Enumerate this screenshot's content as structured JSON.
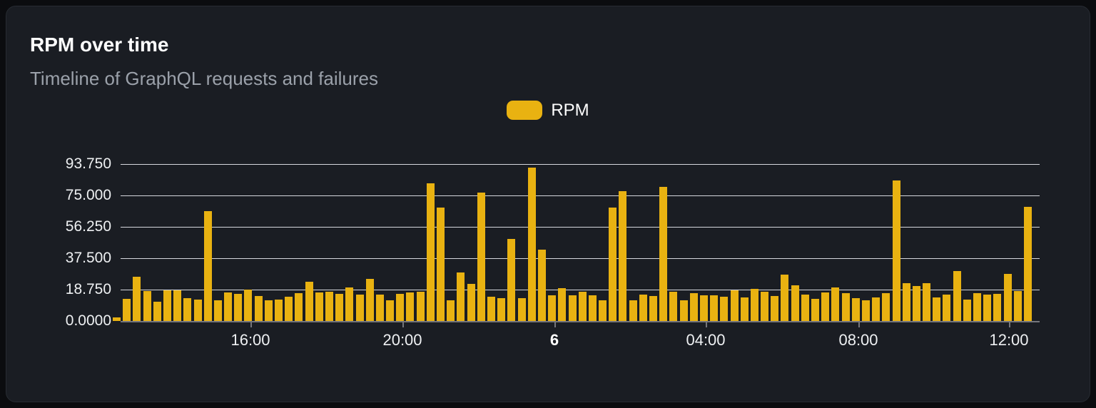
{
  "card": {
    "title": "RPM over time",
    "subtitle": "Timeline of GraphQL requests and failures"
  },
  "legend": {
    "position": "top-center",
    "items": [
      {
        "label": "RPM",
        "color": "#e9b211"
      }
    ]
  },
  "colors": {
    "page_bg": "#0b0c0f",
    "card_bg": "#1a1d23",
    "card_border": "#272b32",
    "bar": "#e9b211",
    "grid_line": "#d6d8de",
    "axis_line": "#75767c",
    "title_text": "#ffffff",
    "subtitle_text": "#9ba1aa",
    "tick_text": "#eef0f2"
  },
  "chart_data": {
    "type": "bar",
    "title": "RPM over time",
    "subtitle": "Timeline of GraphQL requests and failures",
    "xlabel": "",
    "ylabel": "",
    "ylim": [
      0,
      93.75
    ],
    "grid": "horizontal",
    "legend_position": "top-center",
    "y_ticks": [
      "0.0000",
      "18.750",
      "37.500",
      "56.250",
      "75.000",
      "93.750"
    ],
    "x_ticks": [
      {
        "label": "16:00",
        "pos": 0.141,
        "bold": false
      },
      {
        "label": "20:00",
        "pos": 0.307,
        "bold": false
      },
      {
        "label": "6",
        "pos": 0.472,
        "bold": true
      },
      {
        "label": "04:00",
        "pos": 0.637,
        "bold": false
      },
      {
        "label": "08:00",
        "pos": 0.803,
        "bold": false
      },
      {
        "label": "12:00",
        "pos": 0.967,
        "bold": false
      }
    ],
    "series": [
      {
        "name": "RPM",
        "values": [
          2.1,
          13.2,
          26.3,
          17.9,
          11.5,
          18.3,
          18.3,
          13.6,
          12.8,
          65.6,
          12.4,
          17.0,
          16.2,
          18.8,
          15.0,
          12.2,
          12.7,
          14.3,
          16.5,
          23.4,
          17.0,
          17.6,
          16.0,
          20.0,
          15.9,
          25.3,
          15.9,
          12.5,
          16.4,
          17.0,
          17.5,
          82.4,
          67.8,
          12.2,
          28.8,
          22.1,
          76.7,
          14.3,
          13.5,
          48.8,
          13.6,
          91.5,
          42.7,
          15.2,
          19.8,
          15.4,
          17.3,
          15.2,
          12.5,
          67.7,
          77.6,
          12.2,
          15.9,
          15.0,
          80.1,
          17.6,
          12.2,
          16.6,
          15.2,
          15.4,
          14.6,
          18.2,
          14.2,
          19.0,
          17.4,
          14.8,
          27.9,
          21.1,
          15.7,
          13.2,
          17.1,
          20.0,
          16.7,
          13.8,
          12.3,
          14.2,
          16.6,
          83.9,
          22.7,
          21.0,
          22.5,
          13.9,
          15.9,
          30.0,
          12.8,
          16.6,
          15.9,
          16.3,
          28.0,
          17.9,
          68.2
        ]
      }
    ]
  }
}
